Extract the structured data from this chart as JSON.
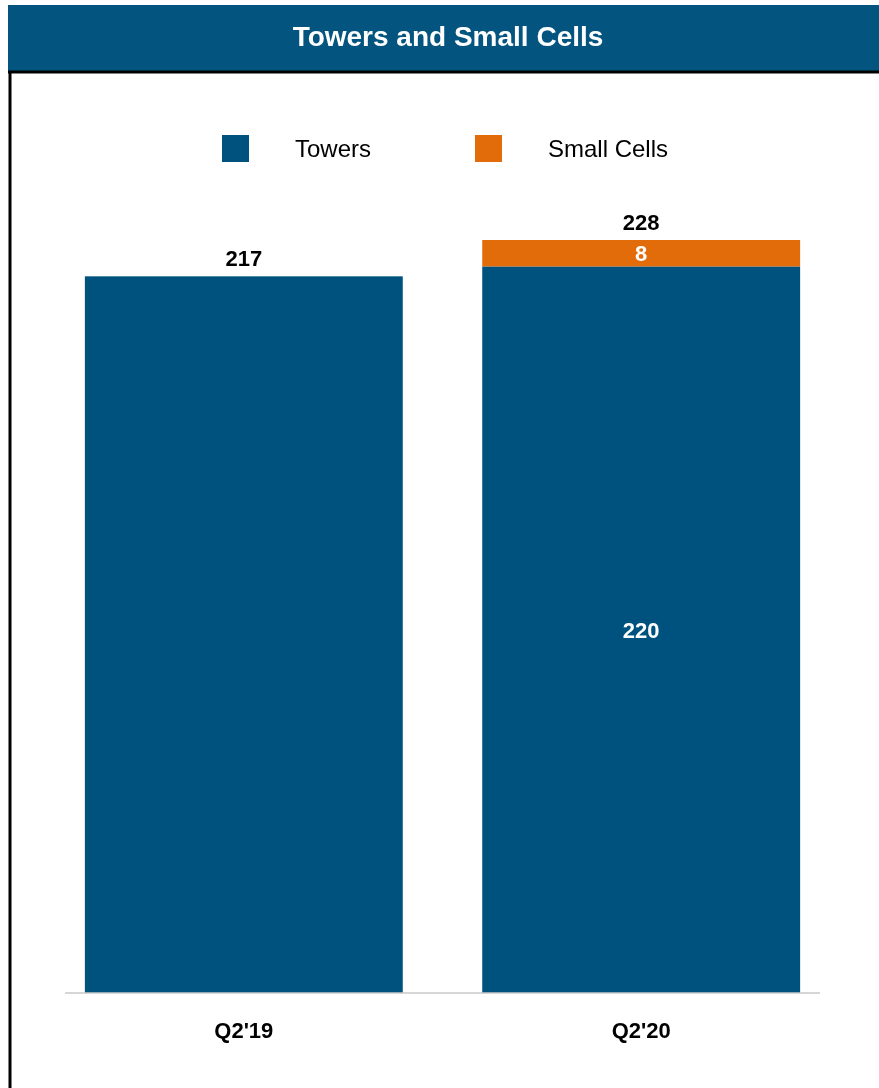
{
  "chart_data": {
    "type": "bar",
    "title": "Towers and Small Cells",
    "categories": [
      "Q2'19",
      "Q2'20"
    ],
    "stacked": true,
    "legend": "top",
    "series": [
      {
        "name": "Towers",
        "color": "#00527e",
        "values": [
          217,
          220
        ],
        "value_labels": [
          null,
          "220"
        ]
      },
      {
        "name": "Small Cells",
        "color": "#e36c0a",
        "values": [
          null,
          8
        ],
        "value_labels": [
          null,
          "8"
        ]
      }
    ],
    "totals": [
      "217",
      "228"
    ]
  }
}
